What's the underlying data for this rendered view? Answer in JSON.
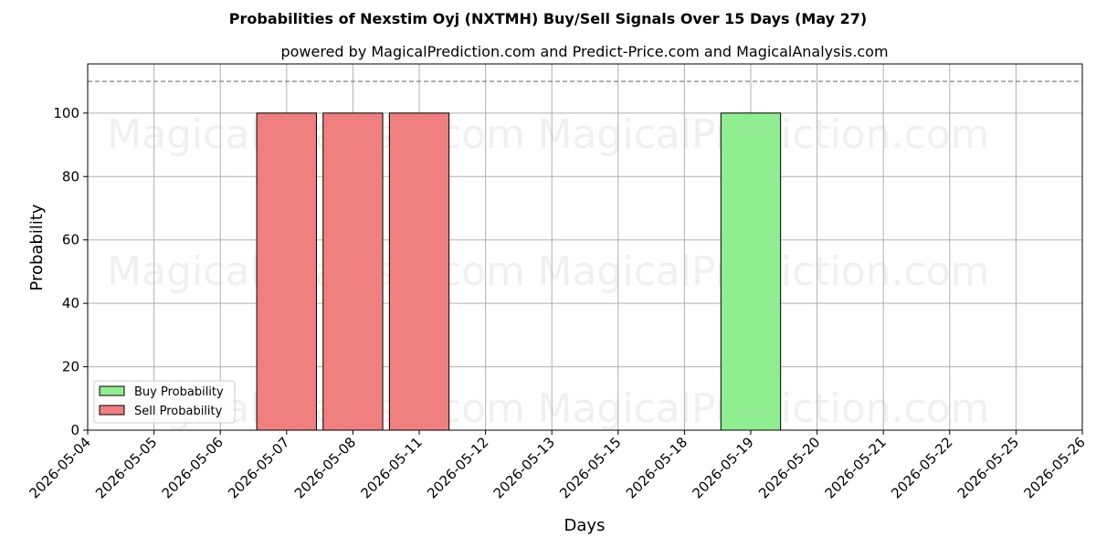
{
  "chart_data": {
    "type": "bar",
    "title": "Probabilities of Nexstim Oyj (NXTMH) Buy/Sell Signals Over 15 Days (May 27)",
    "subtitle": "powered by MagicalPrediction.com and Predict-Price.com and MagicalAnalysis.com",
    "xlabel": "Days",
    "ylabel": "Probability",
    "categories": [
      "2026-05-04",
      "2026-05-05",
      "2026-05-06",
      "2026-05-07",
      "2026-05-08",
      "2026-05-11",
      "2026-05-12",
      "2026-05-13",
      "2026-05-15",
      "2026-05-18",
      "2026-05-19",
      "2026-05-20",
      "2026-05-21",
      "2026-05-22",
      "2026-05-25",
      "2026-05-26"
    ],
    "series": [
      {
        "name": "Buy Probability",
        "color": "#90ee90",
        "values": [
          0,
          0,
          0,
          0,
          0,
          0,
          0,
          0,
          0,
          0,
          100,
          0,
          0,
          0,
          0,
          0
        ]
      },
      {
        "name": "Sell Probability",
        "color": "#f08080",
        "values": [
          0,
          0,
          0,
          100,
          100,
          100,
          0,
          0,
          0,
          0,
          0,
          0,
          0,
          0,
          0,
          0
        ]
      }
    ],
    "ylim": [
      0,
      115.5
    ],
    "yticks": [
      0,
      20,
      40,
      60,
      80,
      100
    ],
    "reference_line": 110,
    "grid": true,
    "legend_position": "lower-left",
    "watermarks": [
      "MagicalAnalysis.com",
      "MagicalPrediction.com",
      "MagicalAnalysis.com",
      "MagicalPrediction.com",
      "MagicalAnalysis.com",
      "MagicalPrediction.com"
    ]
  }
}
